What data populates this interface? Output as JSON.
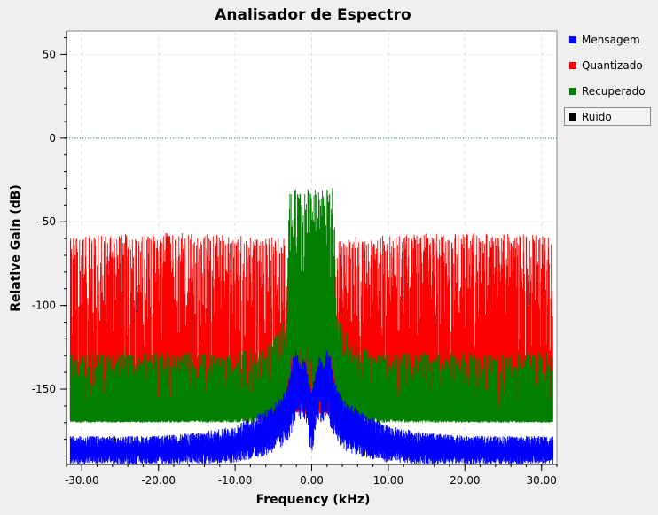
{
  "chart_data": {
    "type": "line",
    "title": "Analisador de Espectro",
    "xlabel": "Frequency (kHz)",
    "ylabel": "Relative Gain (dB)",
    "xlim": [
      -32,
      32
    ],
    "ylim": [
      -195,
      64
    ],
    "xticks": [
      -30,
      -20,
      -10,
      0,
      10,
      20,
      30
    ],
    "xtick_labels": [
      "-30.00",
      "-20.00",
      "-10.00",
      "0.00",
      "10.00",
      "20.00",
      "30.00"
    ],
    "yticks": [
      50,
      0,
      -50,
      -100,
      -150
    ],
    "ytick_labels": [
      "50",
      "0",
      "-50",
      "-100",
      "-150"
    ],
    "grid": true,
    "legend_position": "right",
    "series": [
      {
        "name": "Mensagem",
        "color": "#0000ff",
        "x": [
          -32,
          -30,
          -25,
          -20,
          -15,
          -10,
          -6,
          -4,
          -3,
          -2.5,
          -2,
          -1.5,
          -1,
          -0.5,
          0,
          0.5,
          1,
          1.5,
          2,
          2.5,
          3,
          4,
          6,
          10,
          15,
          20,
          25,
          30,
          32
        ],
        "floor": [
          -186,
          -186,
          -186,
          -186,
          -185,
          -183,
          -175,
          -168,
          -160,
          -150,
          -137,
          -145,
          -138,
          -150,
          -160,
          -150,
          -138,
          -145,
          -137,
          -150,
          -160,
          -168,
          -175,
          -183,
          -185,
          -186,
          -186,
          -186,
          -186
        ],
        "peak": [
          -178,
          -178,
          -178,
          -178,
          -176,
          -172,
          -162,
          -155,
          -145,
          -130,
          -126,
          -135,
          -130,
          -140,
          -150,
          -140,
          -130,
          -135,
          -126,
          -130,
          -145,
          -155,
          -162,
          -172,
          -176,
          -178,
          -178,
          -178,
          -178
        ],
        "bottom": [
          -195,
          -195,
          -195,
          -195,
          -195,
          -194,
          -190,
          -186,
          -180,
          -175,
          -168,
          -172,
          -168,
          -175,
          -195,
          -175,
          -168,
          -172,
          -168,
          -175,
          -180,
          -186,
          -190,
          -194,
          -195,
          -195,
          -195,
          -195,
          -195
        ]
      },
      {
        "name": "Quantizado",
        "color": "#ff0000",
        "x": [
          -32,
          -30,
          -25,
          -20,
          -15,
          -10,
          -5,
          -3.5,
          -3,
          0,
          3,
          3.5,
          5,
          10,
          15,
          20,
          25,
          30,
          32
        ],
        "floor": [
          -165,
          -165,
          -165,
          -165,
          -165,
          -165,
          -165,
          -163,
          -160,
          -160,
          -160,
          -163,
          -165,
          -165,
          -165,
          -165,
          -165,
          -165,
          -165
        ],
        "peak": [
          -60,
          -58,
          -57,
          -56,
          -57,
          -58,
          -59,
          -60,
          -90,
          -90,
          -90,
          -60,
          -59,
          -58,
          -57,
          -56,
          -57,
          -58,
          -60
        ],
        "bottom": [
          -170,
          -170,
          -168,
          -168,
          -168,
          -168,
          -168,
          -168,
          -165,
          -165,
          -165,
          -168,
          -168,
          -168,
          -168,
          -168,
          -168,
          -170,
          -170
        ]
      },
      {
        "name": "Recuperado",
        "color": "#007f00",
        "x": [
          -32,
          -30,
          -25,
          -20,
          -15,
          -10,
          -6,
          -4,
          -3.2,
          -3,
          -1.5,
          0,
          1.5,
          3,
          3.2,
          4,
          6,
          10,
          15,
          20,
          25,
          30,
          32
        ],
        "floor": [
          -168,
          -168,
          -168,
          -168,
          -167,
          -166,
          -162,
          -150,
          -136,
          -100,
          -95,
          -95,
          -95,
          -100,
          -136,
          -150,
          -162,
          -166,
          -167,
          -168,
          -168,
          -168,
          -168
        ],
        "peak": [
          -128,
          -128,
          -128,
          -128,
          -128,
          -128,
          -125,
          -112,
          -105,
          -29,
          -29,
          -29,
          -29,
          -29,
          -105,
          -112,
          -125,
          -128,
          -128,
          -128,
          -128,
          -128,
          -128
        ],
        "bottom": [
          -170,
          -170,
          -170,
          -170,
          -170,
          -170,
          -170,
          -168,
          -165,
          -160,
          -160,
          -160,
          -160,
          -160,
          -165,
          -168,
          -170,
          -170,
          -170,
          -170,
          -170,
          -170,
          -170
        ]
      },
      {
        "name": "Ruido",
        "color": "#000000",
        "x": [],
        "y": []
      }
    ],
    "reference_line": {
      "y": 0,
      "color": "#008080",
      "style": "dotted"
    }
  },
  "legend": {
    "items": [
      {
        "label": "Mensagem",
        "color": "#0000ff"
      },
      {
        "label": "Quantizado",
        "color": "#ff0000"
      },
      {
        "label": "Recuperado",
        "color": "#007f00"
      },
      {
        "label": "Ruido",
        "color": "#000000",
        "selected": true
      }
    ]
  }
}
